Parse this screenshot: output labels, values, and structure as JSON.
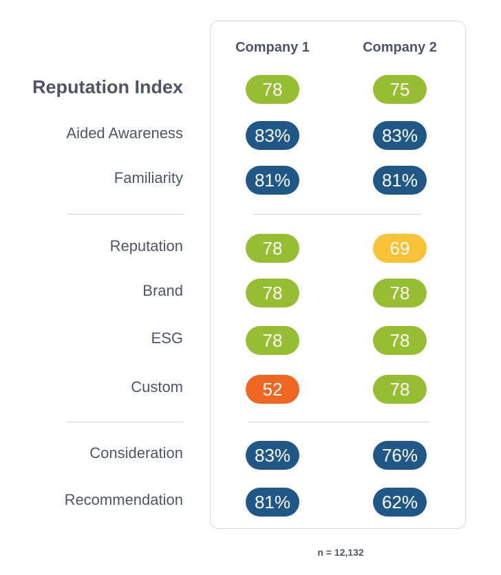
{
  "columns": [
    "Company 1",
    "Company 2"
  ],
  "colors": {
    "green": "#97be32",
    "blue": "#1f5886",
    "yellow": "#f7c235",
    "orange": "#f06724"
  },
  "rows": [
    {
      "label": "Reputation Index",
      "values": [
        "78",
        "75"
      ],
      "colors": [
        "green",
        "green"
      ]
    },
    {
      "label": "Aided Awareness",
      "values": [
        "83%",
        "83%"
      ],
      "colors": [
        "blue",
        "blue"
      ]
    },
    {
      "label": "Familiarity",
      "values": [
        "81%",
        "81%"
      ],
      "colors": [
        "blue",
        "blue"
      ]
    },
    {
      "label": "Reputation",
      "values": [
        "78",
        "69"
      ],
      "colors": [
        "green",
        "yellow"
      ]
    },
    {
      "label": "Brand",
      "values": [
        "78",
        "78"
      ],
      "colors": [
        "green",
        "green"
      ]
    },
    {
      "label": "ESG",
      "values": [
        "78",
        "78"
      ],
      "colors": [
        "green",
        "green"
      ]
    },
    {
      "label": "Custom",
      "values": [
        "52",
        "78"
      ],
      "colors": [
        "orange",
        "green"
      ]
    },
    {
      "label": "Consideration",
      "values": [
        "83%",
        "76%"
      ],
      "colors": [
        "blue",
        "blue"
      ]
    },
    {
      "label": "Recommendation",
      "values": [
        "81%",
        "62%"
      ],
      "colors": [
        "blue",
        "blue"
      ]
    }
  ],
  "sample_size": "n = 12,132"
}
